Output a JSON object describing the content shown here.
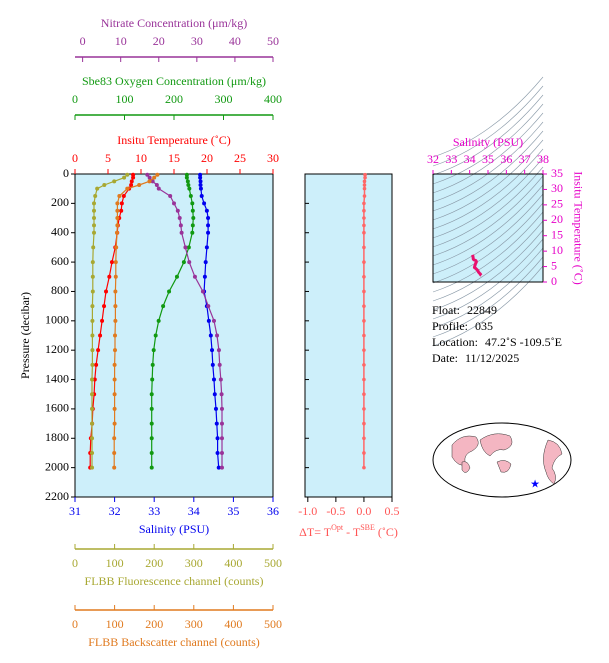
{
  "chart_data": [
    {
      "type": "profile",
      "ylabel": "Pressure (decibar)",
      "y": [
        5,
        25,
        50,
        75,
        100,
        150,
        200,
        250,
        300,
        350,
        400,
        500,
        600,
        700,
        800,
        900,
        1000,
        1100,
        1200,
        1300,
        1400,
        1500,
        1600,
        1700,
        1800,
        1900,
        2000
      ],
      "ylim": [
        0,
        2200
      ],
      "y_inverted": true,
      "yticks": [
        0,
        200,
        400,
        600,
        800,
        1000,
        1200,
        1400,
        1600,
        1800,
        2000,
        2200
      ],
      "background": "#cdeffa",
      "axes": [
        {
          "label": "Salinity (PSU)",
          "color": "#0000ee",
          "xlim": [
            31,
            36
          ],
          "xticks": [
            31,
            32,
            33,
            34,
            35,
            36
          ]
        },
        {
          "label": "Insitu Temperature (˚C)",
          "color": "#ff0000",
          "xlim": [
            0,
            30
          ],
          "xticks": [
            0,
            5,
            10,
            15,
            20,
            25,
            30
          ]
        },
        {
          "label": "Sbe83 Oxygen Concentration (μm/kg)",
          "color": "#119911",
          "xlim": [
            0,
            400
          ],
          "xticks": [
            0,
            100,
            200,
            300,
            400
          ]
        },
        {
          "label": "Nitrate Concentration (μm/kg)",
          "color": "#993399",
          "xlim": [
            -2,
            50
          ],
          "xticks": [
            0,
            10,
            20,
            30,
            40,
            50
          ]
        },
        {
          "label": "FLBB Fluorescence channel (counts)",
          "color": "#a8a832",
          "xlim": [
            0,
            500
          ],
          "xticks": [
            0,
            100,
            200,
            300,
            400,
            500
          ]
        },
        {
          "label": "FLBB Backscatter channel (counts)",
          "color": "#e07a1f",
          "xlim": [
            0,
            500
          ],
          "xticks": [
            0,
            100,
            200,
            300,
            400,
            500
          ]
        }
      ],
      "series": [
        {
          "axis": 0,
          "color": "#0000ee",
          "values": [
            34.16,
            34.16,
            34.17,
            34.17,
            34.18,
            34.2,
            34.26,
            34.33,
            34.36,
            34.36,
            34.36,
            34.33,
            34.3,
            34.28,
            34.26,
            34.33,
            34.38,
            34.43,
            34.46,
            34.48,
            34.51,
            34.53,
            34.56,
            34.58,
            34.6,
            34.6,
            34.63
          ]
        },
        {
          "axis": 1,
          "color": "#ff0000",
          "values": [
            8.8,
            8.8,
            8.6,
            8.5,
            8.2,
            7.4,
            7.1,
            7.0,
            6.7,
            6.5,
            6.4,
            6.1,
            5.6,
            5.2,
            4.7,
            4.4,
            4.1,
            3.8,
            3.5,
            3.2,
            3.0,
            2.9,
            2.7,
            2.6,
            2.4,
            2.3,
            2.3
          ]
        },
        {
          "axis": 2,
          "color": "#119911",
          "values": [
            226,
            226,
            228,
            229,
            231,
            234,
            237,
            238,
            239,
            238,
            237,
            230,
            220,
            206,
            190,
            178,
            169,
            163,
            159,
            157,
            156,
            155,
            155,
            155,
            155,
            155,
            155
          ]
        },
        {
          "axis": 3,
          "color": "#993399",
          "values": [
            17.0,
            17.6,
            18.4,
            19.5,
            20.0,
            23.0,
            24.0,
            25.0,
            25.5,
            25.8,
            26.0,
            27.0,
            28.0,
            29.5,
            31.6,
            33.0,
            34.5,
            35.3,
            35.8,
            36.0,
            36.3,
            36.5,
            36.6,
            36.6,
            36.6,
            36.6,
            36.6
          ]
        },
        {
          "axis": 4,
          "color": "#a8a832",
          "values": [
            132,
            124,
            99,
            74,
            56,
            51,
            48,
            48,
            48,
            48,
            48,
            46,
            45,
            45,
            45,
            44,
            44,
            44,
            44,
            44,
            43,
            43,
            43,
            43,
            43,
            43,
            43
          ]
        },
        {
          "axis": 5,
          "color": "#e07a1f",
          "values": [
            208,
            200,
            188,
            162,
            132,
            112,
            107,
            107,
            107,
            107,
            106,
            104,
            103,
            103,
            102,
            102,
            102,
            101,
            101,
            100,
            100,
            100,
            100,
            100,
            99,
            99,
            99
          ]
        }
      ]
    },
    {
      "type": "delta",
      "xlabel": [
        "ΔT= T",
        "Opt",
        " - T",
        "SBE",
        " (˚C)"
      ],
      "color": "#ff6666",
      "label_color": "#ff5555",
      "xlim": [
        -1.05,
        0.5
      ],
      "xticks": [
        {
          "value": -1,
          "label": "-1.0"
        },
        -0.5,
        {
          "value": 0,
          "label": "0.0"
        },
        0.5
      ],
      "values": [
        0.02,
        0.02,
        0.01,
        0.01,
        0.01,
        0.01,
        0,
        0,
        0,
        0,
        0,
        0,
        0,
        0,
        0,
        0,
        0,
        0,
        0,
        0,
        0,
        0,
        0,
        0,
        0,
        0,
        0
      ]
    },
    {
      "type": "ts",
      "xlabel": "Salinity (PSU)",
      "ylabel": "Insitu Temperature (˚C)",
      "color": "#e600c8",
      "line_color": "#e8106e",
      "xlim": [
        32,
        38
      ],
      "xticks": [
        32,
        33,
        34,
        35,
        36,
        37,
        38
      ],
      "ylim": [
        0,
        35
      ],
      "yticks": [
        0,
        5,
        10,
        15,
        20,
        25,
        30,
        35
      ]
    }
  ],
  "info": [
    {
      "label": "Float:",
      "value": "22849"
    },
    {
      "label": "Profile:",
      "value": "035"
    },
    {
      "label": "Location:",
      "value": "47.2˚S -109.5˚E"
    },
    {
      "label": "Date:",
      "value": "11/12/2025"
    }
  ]
}
